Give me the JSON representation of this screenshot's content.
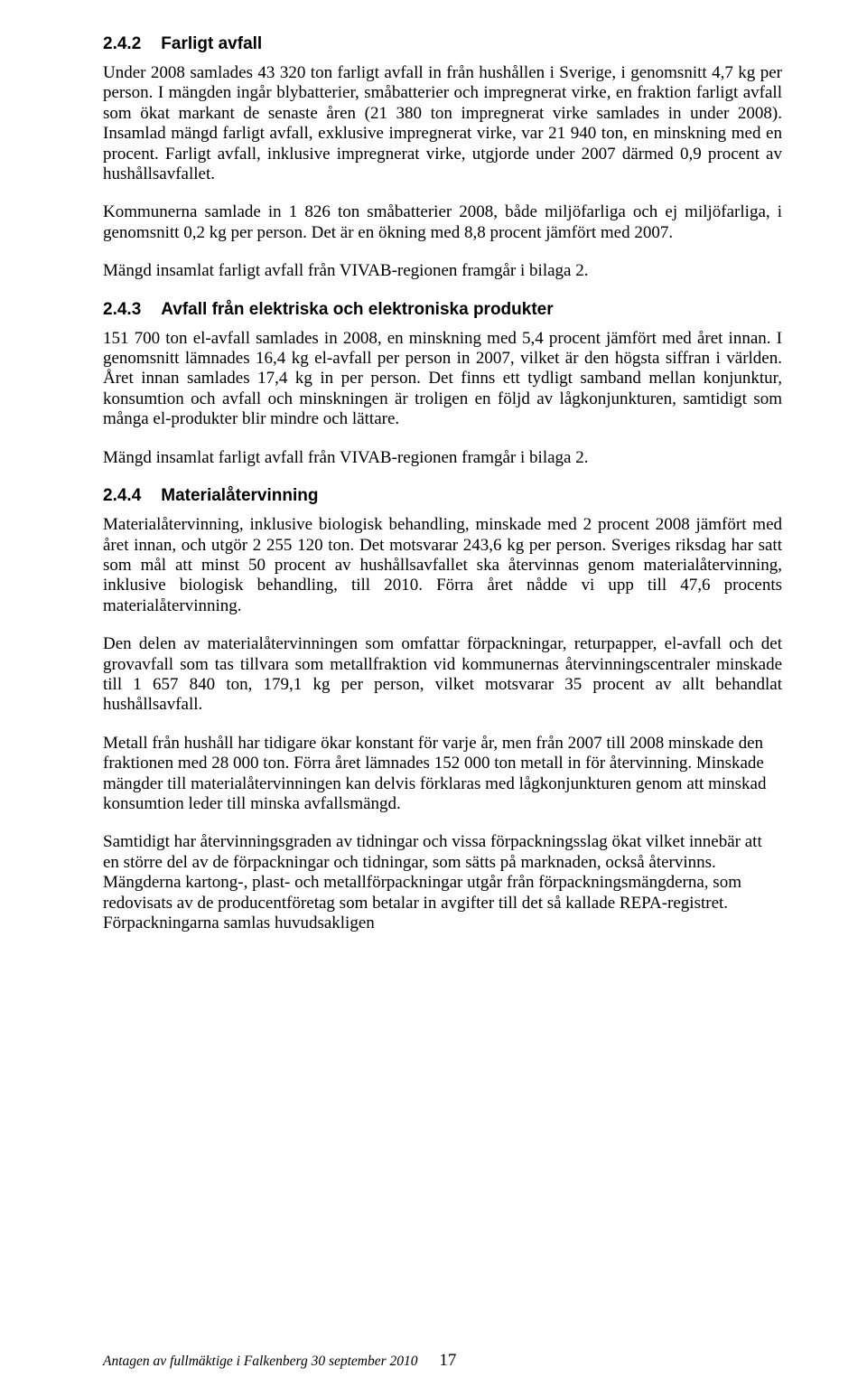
{
  "s242": {
    "num": "2.4.2",
    "title": "Farligt avfall",
    "p1": "Under 2008 samlades 43 320 ton farligt avfall in från hushållen i Sverige, i genomsnitt 4,7 kg per person. I mängden ingår blybatterier, småbatterier och impregnerat virke, en fraktion farligt avfall som ökat markant de senaste åren (21 380 ton impregnerat virke samlades in under 2008). Insamlad mängd farligt avfall, exklusive impregnerat virke, var 21 940 ton, en minskning med en procent. Farligt avfall, inklusive impregnerat virke, utgjorde under 2007 därmed 0,9 procent av hushållsavfallet.",
    "p2": "Kommunerna samlade in 1 826 ton småbatterier 2008, både miljöfarliga och ej miljöfarliga, i genomsnitt 0,2 kg per person. Det är en ökning med 8,8 procent jämfört med 2007.",
    "p3": "Mängd insamlat farligt avfall från VIVAB-regionen framgår i bilaga 2."
  },
  "s243": {
    "num": "2.4.3",
    "title": "Avfall från elektriska och elektroniska produkter",
    "p1": "151 700 ton el-avfall samlades in 2008, en minskning med 5,4 procent jämfört med året innan. I genomsnitt lämnades 16,4 kg el-avfall per person in 2007, vilket är den högsta siffran i världen. Året innan samlades 17,4 kg in per person. Det finns ett tydligt samband mellan konjunktur, konsumtion och avfall och minskningen är troligen en följd av lågkonjunkturen, samtidigt som många el-produkter blir mindre och lättare.",
    "p2": "Mängd insamlat farligt avfall från VIVAB-regionen framgår i bilaga 2."
  },
  "s244": {
    "num": "2.4.4",
    "title": "Materialåtervinning",
    "p1": "Materialåtervinning, inklusive biologisk behandling, minskade med 2 procent 2008 jämfört med året innan, och utgör 2 255 120 ton. Det motsvarar 243,6 kg per person. Sveriges riksdag har satt som mål att minst 50 procent av hushållsavfallet ska återvinnas genom materialåtervinning, inklusive biologisk behandling, till 2010. Förra året nådde vi upp till 47,6 procents materialåtervinning.",
    "p2": "Den delen av materialåtervinningen som omfattar förpackningar, returpapper, el-avfall och det grovavfall som tas tillvara som metallfraktion vid kommunernas återvinningscentraler minskade till 1 657 840 ton, 179,1 kg per person, vilket motsvarar 35 procent av allt behandlat hushållsavfall.",
    "p3": "Metall från hushåll har tidigare ökar konstant för varje år, men från 2007 till 2008 minskade den fraktionen med 28 000 ton. Förra året lämnades 152 000 ton metall in för återvinning. Minskade mängder till materialåtervinningen kan delvis förklaras med lågkonjunkturen genom att minskad konsumtion leder till minska avfallsmängd.",
    "p4": "Samtidigt har återvinningsgraden av tidningar och vissa förpackningsslag ökat vilket innebär att en större del av de förpackningar och tidningar, som sätts på marknaden, också återvinns. Mängderna kartong-, plast- och metallförpackningar utgår från förpackningsmängderna, som redovisats av de producentföretag som betalar in avgifter till det så kallade REPA-registret. Förpackningarna samlas huvudsakligen"
  },
  "footer": {
    "text": "Antagen av fullmäktige i Falkenberg 30 september 2010",
    "page": "17"
  }
}
